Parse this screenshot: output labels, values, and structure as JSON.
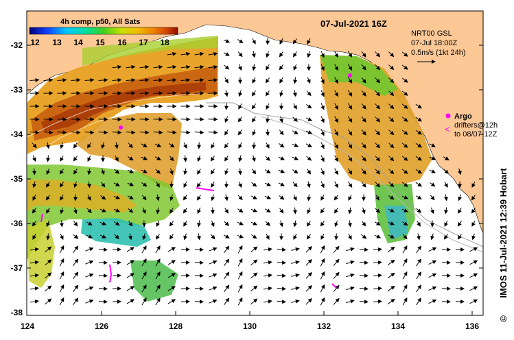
{
  "title": "07-Jul-2021 16Z",
  "colorbar": {
    "label": "4h comp, p50, All Sats",
    "ticks": [
      "12",
      "13",
      "14",
      "15",
      "16",
      "17",
      "18"
    ]
  },
  "source": {
    "line1": "NRT00 GSL",
    "line2": "07-Jul 18:00Z",
    "line3": "0.5m/s (1kt 24h)"
  },
  "legend": {
    "argo_label": "Argo",
    "drifter_line1": "drifters@12h",
    "drifter_line2": "to 08/07-12Z"
  },
  "axes": {
    "y_ticks": [
      "-32",
      "-33",
      "-34",
      "-35",
      "-36",
      "-37",
      "-38"
    ],
    "x_ticks": [
      "124",
      "126",
      "128",
      "130",
      "132",
      "134",
      "136"
    ]
  },
  "credit": "IMOS 11-Jul-2021 12:39 Hobart",
  "copyright": "©",
  "colors": {
    "land": "#fcc896",
    "ocean": "#ffffff",
    "arrow": "#000000",
    "argo": "#ff00ff"
  }
}
